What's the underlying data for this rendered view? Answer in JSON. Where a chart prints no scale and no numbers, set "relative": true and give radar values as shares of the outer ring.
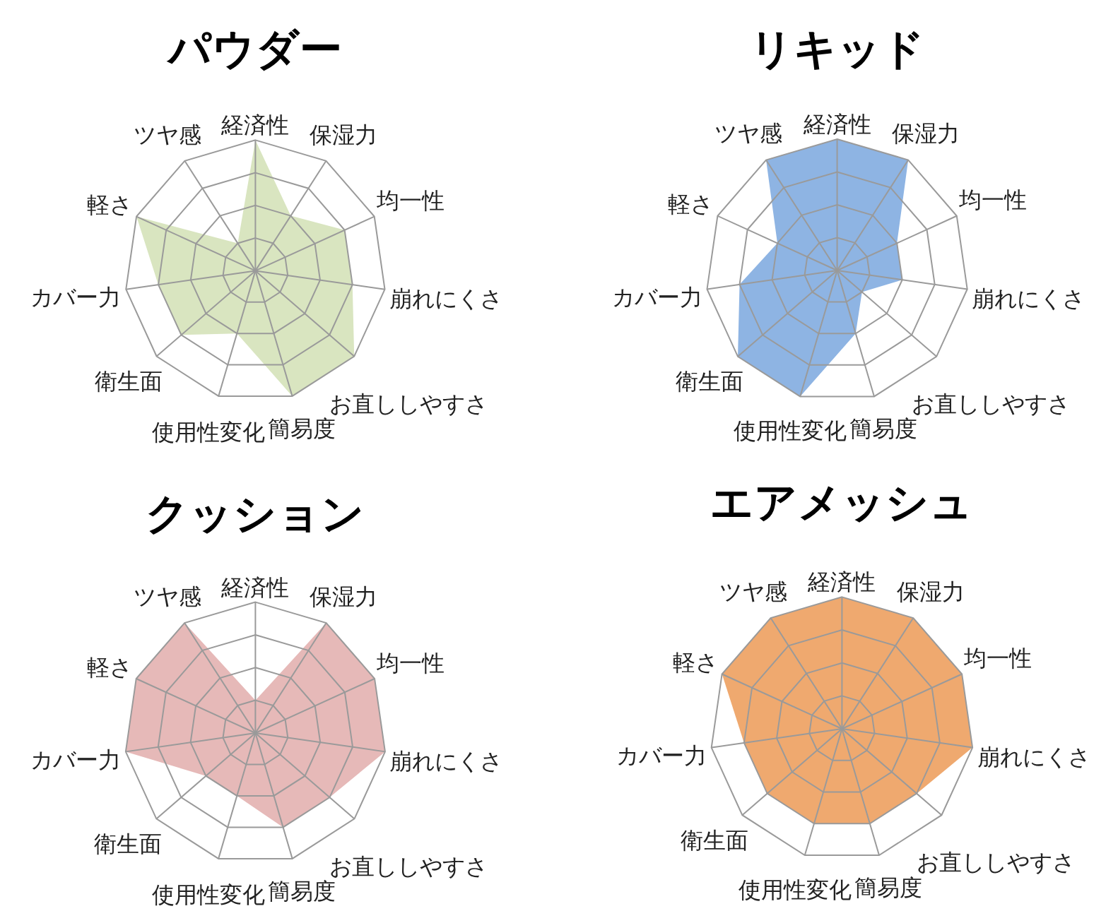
{
  "chart_data": [
    {
      "type": "radar",
      "title": "パウダー",
      "categories": [
        "経済性",
        "保湿力",
        "均一性",
        "崩れにくさ",
        "お直ししやすさ",
        "簡易度",
        "使用性変化",
        "衛生面",
        "カバー力",
        "軽さ",
        "ツヤ感"
      ],
      "series": [
        {
          "color": "#d9e5c0",
          "values": [
            1,
            0.5,
            0.75,
            0.75,
            1,
            1,
            0.5,
            0.75,
            0.75,
            1,
            0.25
          ]
        }
      ],
      "relative": true,
      "grid": true
    },
    {
      "type": "radar",
      "title": "リキッド",
      "categories": [
        "経済性",
        "保湿力",
        "均一性",
        "崩れにくさ",
        "お直ししやすさ",
        "簡易度",
        "使用性変化",
        "衛生面",
        "カバー力",
        "軽さ",
        "ツヤ感"
      ],
      "series": [
        {
          "color": "#8eb4e3",
          "values": [
            1,
            1,
            0.5,
            0.5,
            0.25,
            0.5,
            1,
            1,
            0.75,
            0.5,
            1
          ]
        }
      ],
      "relative": true,
      "grid": true
    },
    {
      "type": "radar",
      "title": "クッション",
      "categories": [
        "経済性",
        "保湿力",
        "均一性",
        "崩れにくさ",
        "お直ししやすさ",
        "簡易度",
        "使用性変化",
        "衛生面",
        "カバー力",
        "軽さ",
        "ツヤ感"
      ],
      "series": [
        {
          "color": "#e6b9b8",
          "values": [
            0.25,
            1,
            1,
            1,
            0.75,
            0.75,
            0.5,
            0.5,
            1,
            1,
            1
          ]
        }
      ],
      "relative": true,
      "grid": true
    },
    {
      "type": "radar",
      "title": "エアメッシュ",
      "categories": [
        "経済性",
        "保湿力",
        "均一性",
        "崩れにくさ",
        "お直ししやすさ",
        "簡易度",
        "使用性変化",
        "衛生面",
        "カバー力",
        "軽さ",
        "ツヤ感"
      ],
      "series": [
        {
          "color": "#efa96f",
          "values": [
            1,
            1,
            1,
            1,
            0.75,
            0.75,
            0.75,
            0.75,
            0.75,
            1,
            1
          ]
        }
      ],
      "relative": true,
      "grid": true
    }
  ]
}
